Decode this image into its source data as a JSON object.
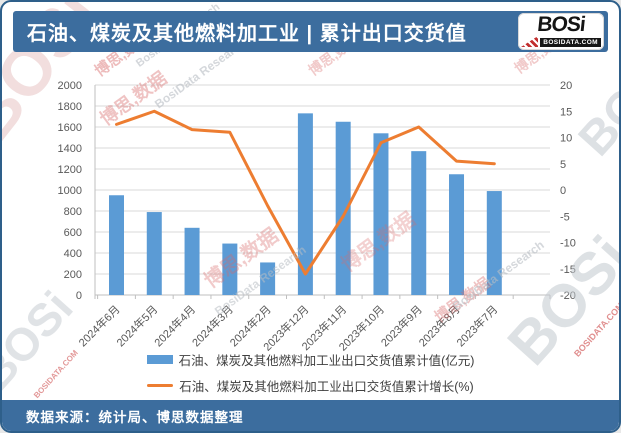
{
  "header": {
    "title": "石油、煤炭及其他燃料加工业 | 累计出口交货值",
    "logo": {
      "text": "BOSi",
      "domain": "BOSIDATA.COM"
    }
  },
  "footer": {
    "source": "数据来源：统计局、博思数据整理"
  },
  "colors": {
    "band_blue": "#3C6D9E",
    "border_blue": "#2E5F8A",
    "bar_blue": "#5B9BD5",
    "line_orange": "#ED7D31",
    "gridline": "#D9D9D9",
    "axis_line": "#BFBFBF",
    "axis_text": "#595959",
    "legend_text": "#404040"
  },
  "chart_data": {
    "type": "bar",
    "subtype": "combo-bar-line-dual-axis",
    "title": "石油、煤炭及其他燃料加工业 | 累计出口交货值",
    "categories": [
      "2024年6月",
      "2024年5月",
      "2024年4月",
      "2024年3月",
      "2024年2月",
      "2023年12月",
      "2023年11月",
      "2023年10月",
      "2023年9月",
      "2023年8月",
      "2023年7月"
    ],
    "series": [
      {
        "name": "石油、煤炭及其他燃料加工业出口交货值累计值(亿元)",
        "type": "bar",
        "axis": "left",
        "color": "#5B9BD5",
        "values": [
          950,
          790,
          640,
          490,
          310,
          1730,
          1650,
          1540,
          1370,
          1150,
          990
        ]
      },
      {
        "name": "石油、煤炭及其他燃料加工业出口交货值累计增长(%)",
        "type": "line",
        "axis": "right",
        "color": "#ED7D31",
        "values": [
          12.5,
          15,
          11.5,
          11,
          -3,
          -16,
          -5,
          9,
          12,
          5.5,
          5
        ]
      }
    ],
    "left_axis": {
      "min": 0,
      "max": 2000,
      "step": 200
    },
    "right_axis": {
      "min": -20,
      "max": 20,
      "step": 5
    },
    "grid": true,
    "legend_position": "bottom"
  },
  "watermarks": {
    "big": "BOSi",
    "cn": "博思,数据",
    "en": "BosiData Research",
    "dom": "BOSIDATA.COM"
  }
}
